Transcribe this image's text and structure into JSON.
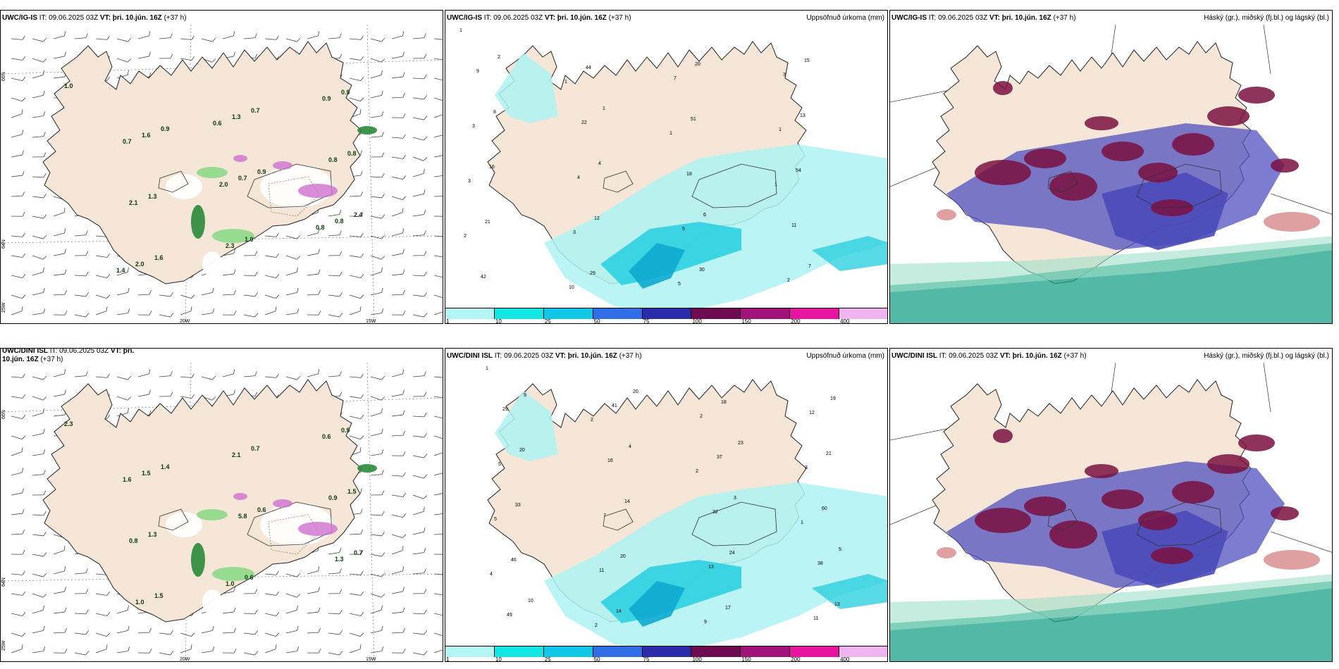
{
  "panels": [
    {
      "model": "UWC/IG-IS",
      "it_label": "IT:",
      "it": "09.06.2025 03Z",
      "vt_label": "VT:",
      "vt": "þri. 10.jún. 16Z",
      "lead": "(+37 h)",
      "right_title": ""
    },
    {
      "model": "UWC/IG-IS",
      "it_label": "IT:",
      "it": "09.06.2025 03Z",
      "vt_label": "VT:",
      "vt": "þri. 10.jún. 16Z",
      "lead": "(+37 h)",
      "right_title": "Uppsöfnuð úrkoma (mm)"
    },
    {
      "model": "UWC/IG-IS",
      "it_label": "IT:",
      "it": "09.06.2025 03Z",
      "vt_label": "VT:",
      "vt": "þri. 10.jún. 16Z",
      "lead": "(+37 h)",
      "right_title": "Háský (gr.), miðský (fj.bl.) og lágský (bl.)"
    },
    {
      "model": "UWC/DINI ISL",
      "it_label": "IT:",
      "it": "09.06.2025 03Z",
      "vt_label": "VT:",
      "vt": "þri. 10.jún. 16Z",
      "lead": "(+37 h)",
      "right_title": ""
    },
    {
      "model": "UWC/DINI ISL",
      "it_label": "IT:",
      "it": "09.06.2025 03Z",
      "vt_label": "VT:",
      "vt": "þri. 10.jún. 16Z",
      "lead": "(+37 h)",
      "right_title": "Uppsöfnuð úrkoma (mm)"
    },
    {
      "model": "UWC/DINI ISL",
      "it_label": "IT:",
      "it": "09.06.2025 03Z",
      "vt_label": "VT:",
      "vt": "þri. 10.jún. 16Z",
      "lead": "(+37 h)",
      "right_title": "Háský (gr.), miðský (fj.bl.) og lágský (bl.)"
    }
  ],
  "axis_labels": {
    "lat66": "66N",
    "lat64": "64N",
    "lon25": "25W",
    "lon20": "20W",
    "lon15": "15W"
  },
  "precip_scale": {
    "labels": [
      "1",
      "10",
      "25",
      "50",
      "75",
      "100",
      "150",
      "200",
      "400"
    ],
    "colors": [
      "#b4f5f5",
      "#14e6e6",
      "#10c8e6",
      "#2f6ee6",
      "#2c2ca8",
      "#6e0a50",
      "#a0147a",
      "#e614a0",
      "#f0b4f0"
    ]
  },
  "colors": {
    "land": "#f5e6d8",
    "precip_light": "#aef2f2",
    "precip_med": "#2ed0e0",
    "precip_heavy": "#10a8d0",
    "cloud_high": "#7a1040",
    "cloud_mid": "#5050c0",
    "cloud_low": "#1aa088",
    "snow": "#ffffff",
    "green": "#7fd87f",
    "purple": "#d070d0"
  },
  "top_wind_values": [
    "1.0",
    "0.9",
    "0.9",
    "2.4",
    "1.6",
    "0.7",
    "0.8",
    "1.3",
    "1.0",
    "0.9",
    "1.6",
    "0.7",
    "0.8",
    "2.0",
    "1.3",
    "0.8",
    "2.1",
    "2.3",
    "0.9",
    "0.7",
    "2.0",
    "0.8",
    "1.4",
    "0.6"
  ],
  "bottom_wind_values": [
    "2.3",
    "1.4",
    "0.6",
    "0.7",
    "1.5",
    "0.7",
    "1.5",
    "1.3",
    "0.6",
    "0.9",
    "1.5",
    "5.8",
    "1.3",
    "1.0",
    "2.1",
    "0.9",
    "0.8",
    "1.0",
    "0.6",
    "1.6"
  ],
  "top_precip_values": [
    "1",
    "1",
    "1",
    "1",
    "2",
    "10",
    "7",
    "1",
    "3",
    "3",
    "5",
    "3",
    "3",
    "4",
    "5",
    "2",
    "9",
    "22",
    "18",
    "11",
    "42",
    "44",
    "51",
    "54",
    "21",
    "29",
    "20",
    "13",
    "16",
    "12",
    "30",
    "15",
    "8",
    "4",
    "6",
    "7",
    "2",
    "1"
  ],
  "bottom_precip_values": [
    "1",
    "2",
    "2",
    "1",
    "4",
    "2",
    "2",
    "3",
    "5",
    "11",
    "9",
    "12",
    "5",
    "7",
    "13",
    "11",
    "29",
    "16",
    "32",
    "38",
    "49",
    "41",
    "37",
    "60",
    "46",
    "14",
    "18",
    "21",
    "33",
    "20",
    "17",
    "19",
    "20",
    "14",
    "24",
    "13",
    "9",
    "4",
    "3",
    "5",
    "10",
    "20",
    "23"
  ]
}
